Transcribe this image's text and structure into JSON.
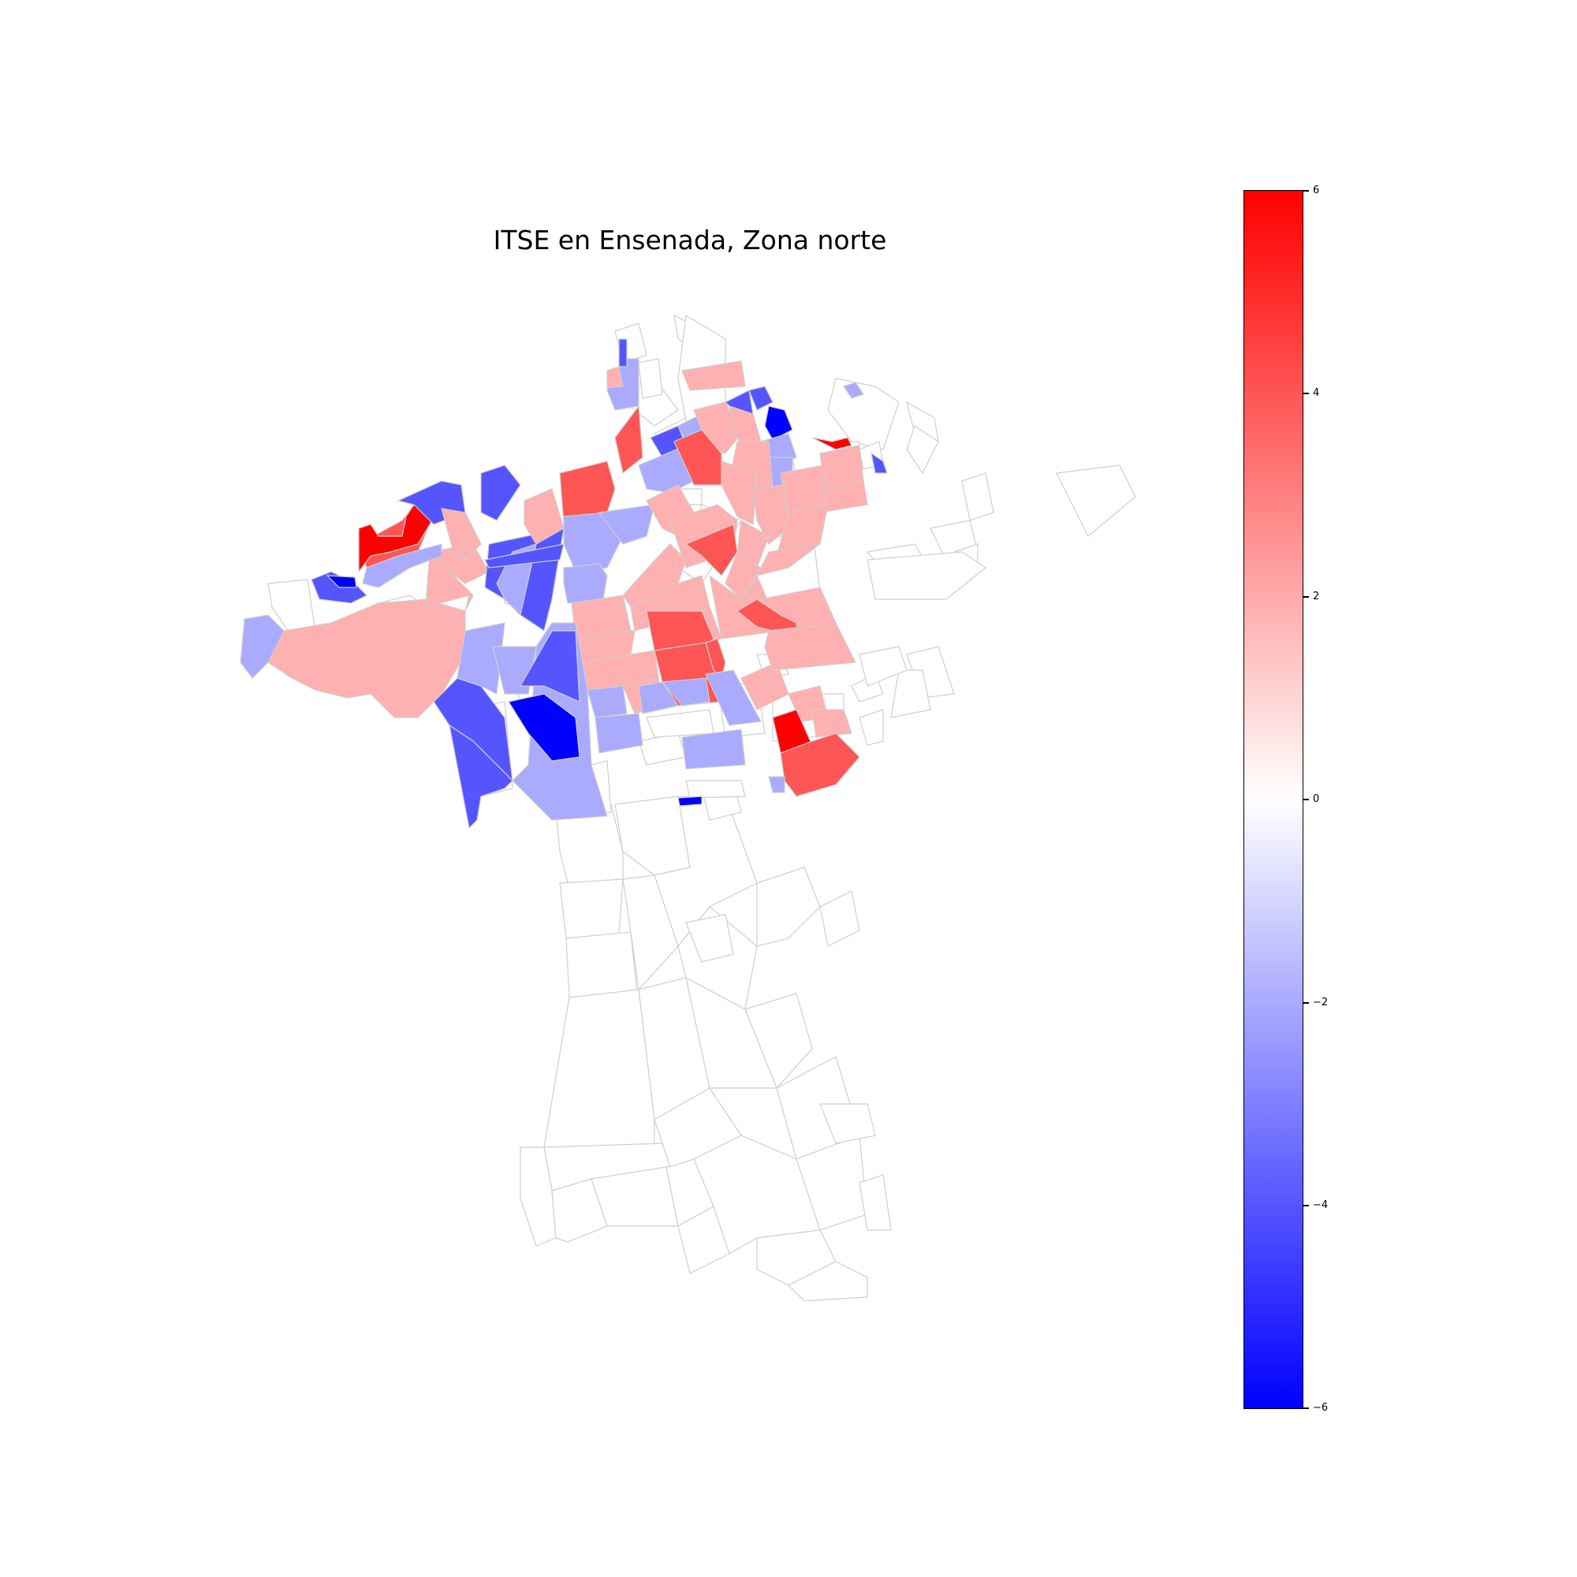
{
  "title": "ITSE en Ensenada, Zona norte",
  "colors": {
    "high": "#ff0000",
    "mid": "#ffffff",
    "low": "#0000ff",
    "border": "#cfcfcf"
  },
  "colorbar": {
    "min": -6,
    "max": 6,
    "ticks": [
      "6",
      "4",
      "2",
      "0",
      "−2",
      "−4",
      "−6"
    ]
  },
  "chart_data": {
    "type": "choropleth",
    "title": "ITSE en Ensenada, Zona norte",
    "vmin": -6,
    "vmax": 6,
    "colormap": "bwr",
    "legend": "colorbar, right"
  }
}
